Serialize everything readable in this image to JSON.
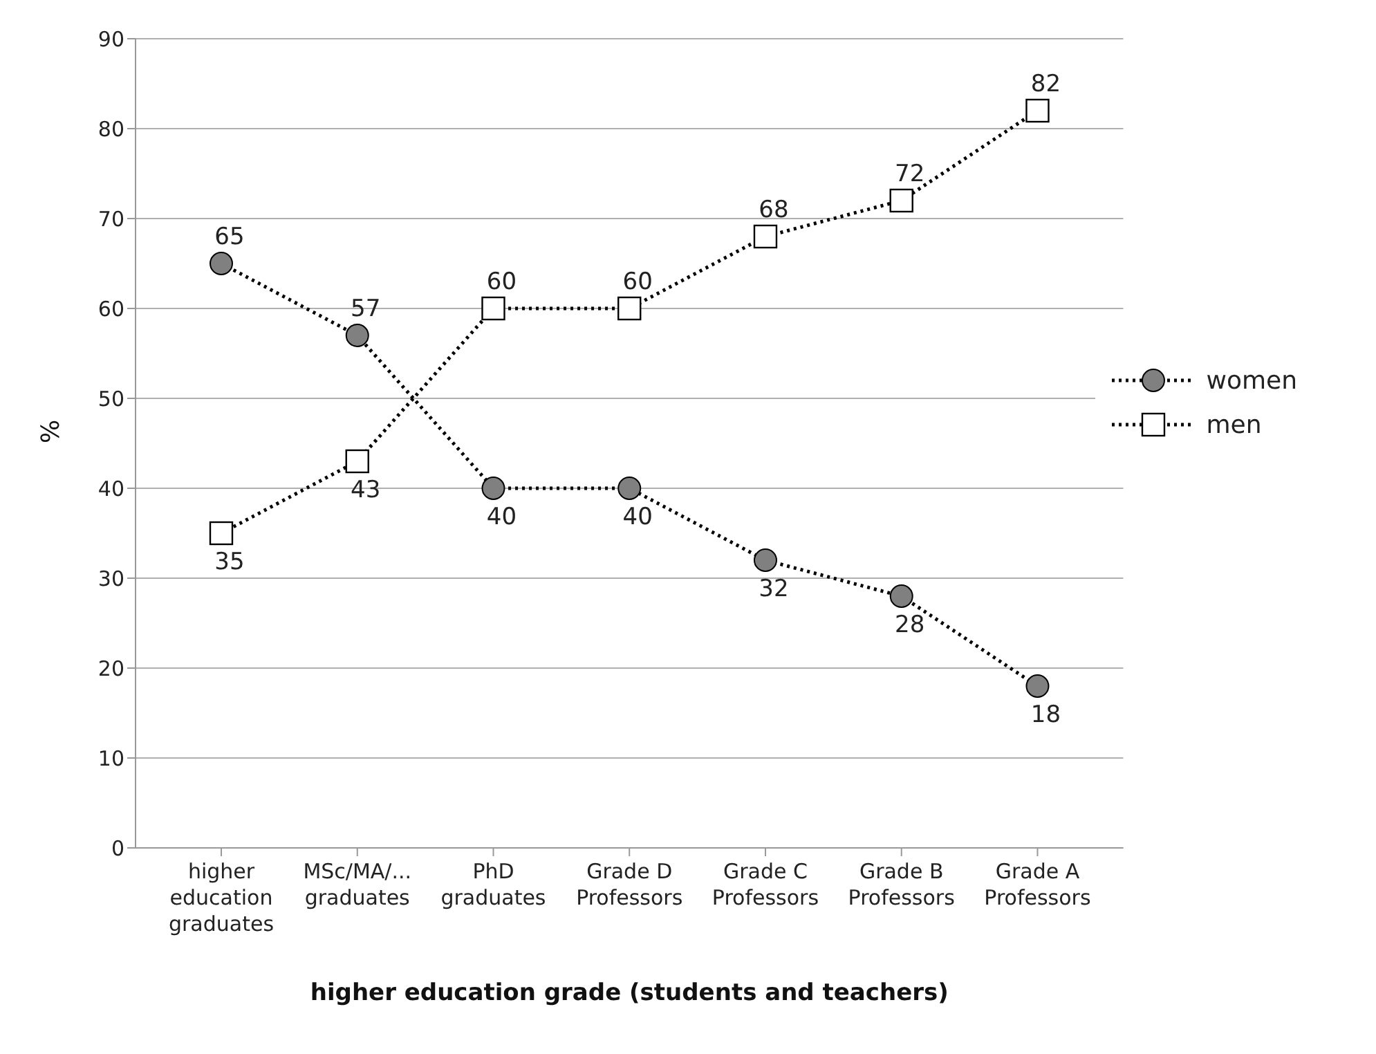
{
  "chart_data": {
    "type": "line",
    "xlabel": "higher education grade (students and teachers)",
    "ylabel": "%",
    "categories": [
      "higher education graduates",
      "MSc/MA/... graduates",
      "PhD graduates",
      "Grade D Professors",
      "Grade C Professors",
      "Grade B Professors",
      "Grade A Professors"
    ],
    "series": [
      {
        "name": "women",
        "color": "#808080",
        "marker": "circle",
        "values": [
          65,
          57,
          40,
          40,
          32,
          28,
          18
        ]
      },
      {
        "name": "men",
        "color": "#ffffff",
        "marker": "square",
        "values": [
          35,
          43,
          60,
          60,
          68,
          72,
          82
        ]
      }
    ],
    "ylim": [
      0,
      90
    ],
    "yticks": [
      0,
      10,
      20,
      30,
      40,
      50,
      60,
      70,
      80,
      90
    ],
    "grid": "y",
    "legend": "right",
    "line_style": "dotted",
    "data_labels": true
  }
}
